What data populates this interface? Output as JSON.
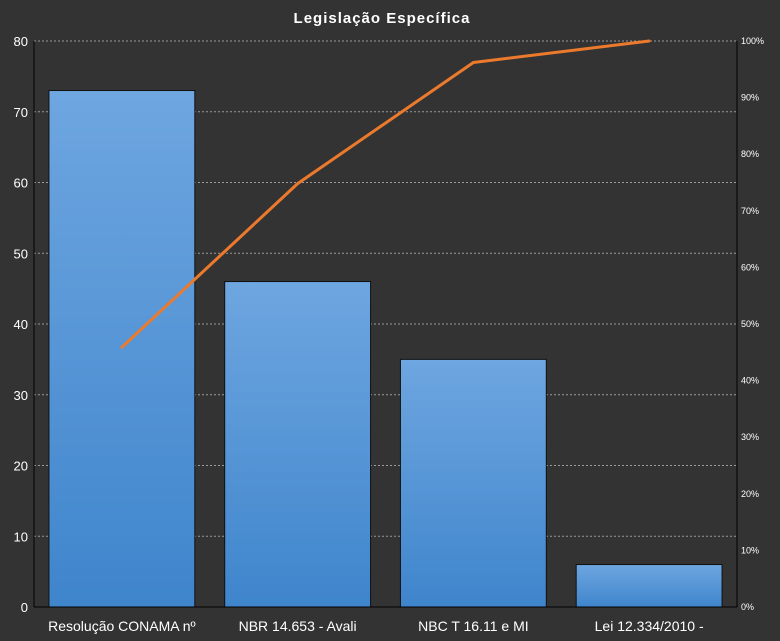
{
  "chart_data": {
    "type": "bar",
    "title": "Legislação Específica",
    "categories": [
      "Resolução CONAMA nº",
      "NBR 14.653 - Avali",
      "NBC T 16.11 e MI",
      "Lei 12.334/2010 -"
    ],
    "series": [
      {
        "type": "bar",
        "values": [
          73,
          46,
          35,
          6
        ]
      },
      {
        "type": "line",
        "axis": "secondary",
        "values": [
          45.9,
          74.8,
          96.2,
          100
        ]
      }
    ],
    "ylim": [
      0,
      80
    ],
    "yticks": [
      "0",
      "10",
      "20",
      "30",
      "40",
      "50",
      "60",
      "70",
      "80"
    ],
    "y2lim": [
      0,
      100
    ],
    "y2ticks": [
      "0%",
      "10%",
      "20%",
      "30%",
      "40%",
      "50%",
      "60%",
      "70%",
      "80%",
      "90%",
      "100%"
    ],
    "grid": true,
    "legend": "none",
    "colors": {
      "background": "#333333",
      "bar_top": "#6ea6e0",
      "bar_bottom": "#3f85cc",
      "bar_edge": "#111111",
      "line": "#ec7a2c",
      "grid": "#9a9a9a",
      "text": "#ffffff"
    }
  }
}
